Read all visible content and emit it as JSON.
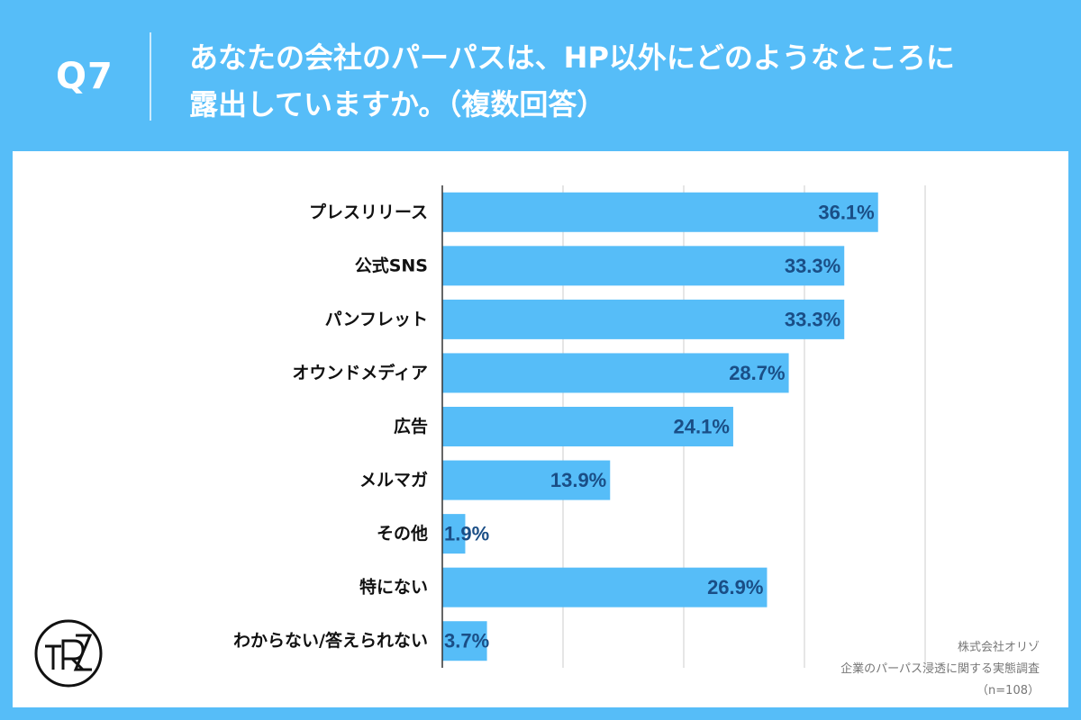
{
  "header": {
    "question_number": "Q7",
    "question_line1": "あなたの会社のパーパスは、HP以外にどのようなところに",
    "question_line2": "露出していますか。（複数回答）"
  },
  "footer": {
    "company": "株式会社オリゾ",
    "survey": "企業のパーパス浸透に関する実態調査",
    "sample": "（n=108）"
  },
  "colors": {
    "background": "#56bdf8",
    "bar": "#56bdf8",
    "value_text": "#1a4e86",
    "grid": "#cccccc"
  },
  "chart_data": {
    "type": "bar",
    "orientation": "horizontal",
    "title": "",
    "xlabel": "",
    "ylabel": "",
    "categories": [
      "プレスリリース",
      "公式SNS",
      "パンフレット",
      "オウンドメディア",
      "広告",
      "メルマガ",
      "その他",
      "特にない",
      "わからない/答えられない"
    ],
    "values": [
      36.1,
      33.3,
      33.3,
      28.7,
      24.1,
      13.9,
      1.9,
      26.9,
      3.7
    ],
    "data_labels": [
      "36.1%",
      "33.3%",
      "33.3%",
      "28.7%",
      "24.1%",
      "13.9%",
      "1.9%",
      "26.9%",
      "3.7%"
    ],
    "xlim": [
      0,
      40
    ],
    "grid": true,
    "legend": "none"
  }
}
